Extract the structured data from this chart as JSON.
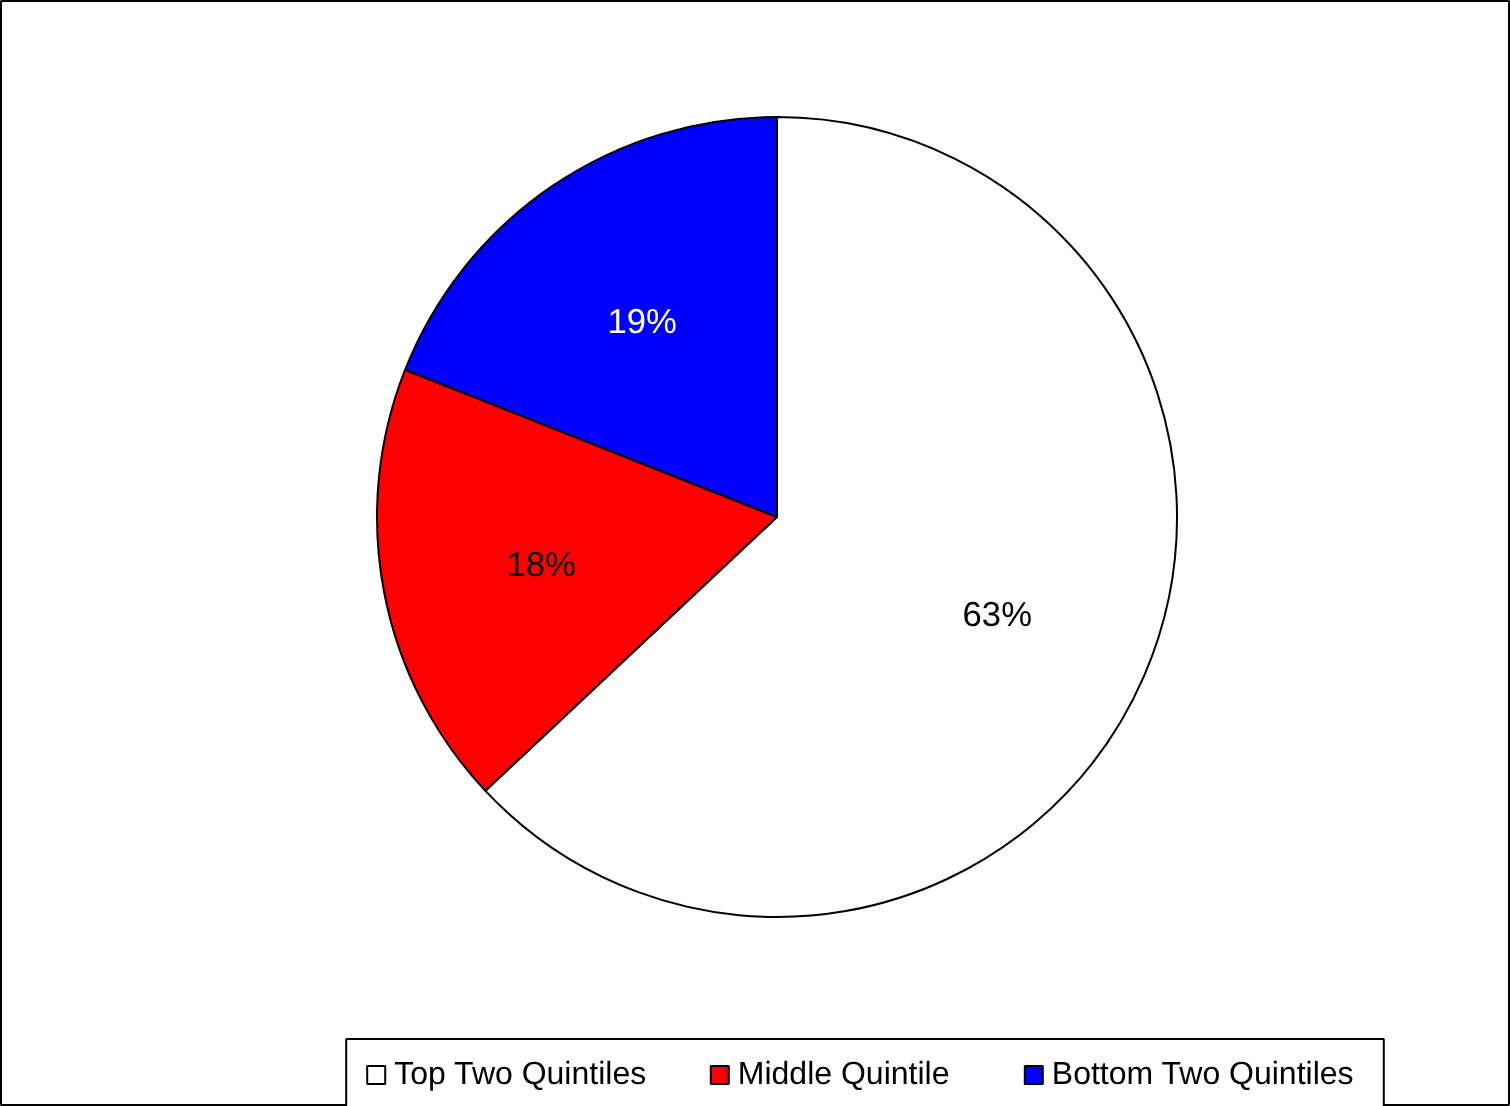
{
  "chart_data": {
    "type": "pie",
    "categories": [
      "Top Two Quintiles",
      "Middle Quintile",
      "Bottom Two Quintiles"
    ],
    "values": [
      63,
      18,
      19
    ],
    "colors": [
      "#ffffff",
      "#ff0000",
      "#0000ff"
    ],
    "value_labels": [
      "63%",
      "18%",
      "19%"
    ],
    "legend": "bottom"
  }
}
